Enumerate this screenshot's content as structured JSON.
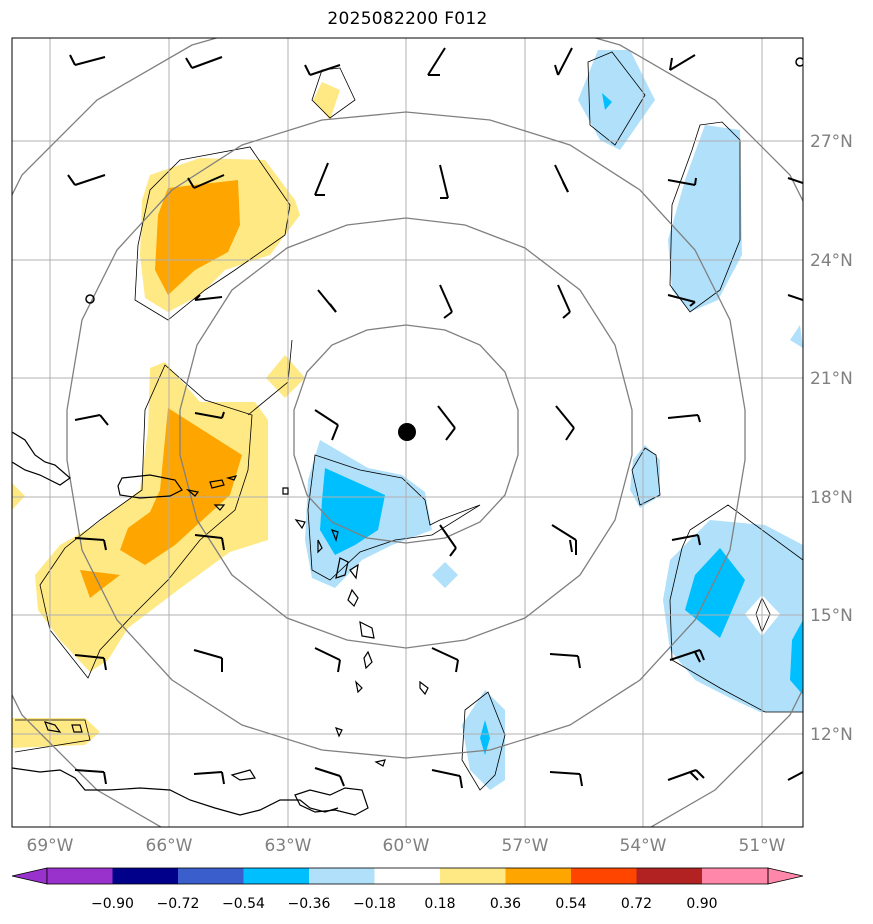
{
  "title": "2025082200 F012",
  "center_marker": "storm-center-dot",
  "lon_labels": [
    "69°W",
    "66°W",
    "63°W",
    "60°W",
    "57°W",
    "54°W",
    "51°W"
  ],
  "lat_labels": [
    "27°N",
    "24°N",
    "21°N",
    "18°N",
    "15°N",
    "12°N"
  ],
  "colorbar": {
    "ticks": [
      "−0.90",
      "−0.72",
      "−0.54",
      "−0.36",
      "−0.18",
      "0.18",
      "0.36",
      "0.54",
      "0.72",
      "0.90"
    ],
    "colors": [
      "#9932cc",
      "#00008b",
      "#3a5fcd",
      "#00bfff",
      "#b0e0fa",
      "#ffffff",
      "#ffe985",
      "#ffa500",
      "#ff4500",
      "#b22222",
      "#ff88aa"
    ]
  },
  "colors": {
    "grid": "#b0b0b0",
    "range_ring": "#808080",
    "coast": "#000000",
    "pos_light": "#ffe985",
    "pos_mid": "#ffa500",
    "neg_light": "#b0e0fa",
    "neg_mid": "#00bfff"
  }
}
